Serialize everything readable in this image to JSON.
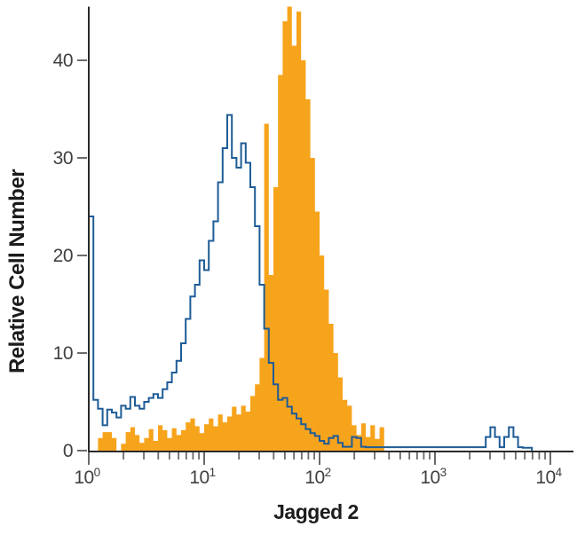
{
  "chart_data": {
    "type": "histogram-overlay-flow-cytometry",
    "title": "",
    "xlabel": "Jagged 2",
    "ylabel": "Relative Cell Number",
    "x_scale": "log10",
    "x_decade_exponents": [
      0,
      1,
      2,
      3,
      4
    ],
    "x_tick_base": "10",
    "x_minor_ticks": [
      2,
      3,
      4,
      5,
      6,
      7,
      8,
      9
    ],
    "y_ticks": [
      0,
      10,
      20,
      30,
      40
    ],
    "ylim": [
      0,
      45.5
    ],
    "grid": "off",
    "legend": "none",
    "bins_per_decade": 25,
    "n_bins": 100,
    "series": [
      {
        "name": "filled-stained-histogram",
        "style": "filled",
        "color": "#F7A41D",
        "values": [
          0,
          0,
          1.3,
          1.9,
          1.9,
          1.3,
          0,
          0.7,
          1.9,
          2.4,
          1.6,
          0.8,
          1.3,
          2.2,
          1.0,
          2.6,
          2.1,
          1.3,
          2.3,
          1.6,
          2.1,
          2.9,
          3.3,
          2.5,
          1.8,
          2.7,
          3.3,
          2.5,
          3.7,
          2.9,
          3.5,
          4.5,
          3.7,
          4.6,
          4.0,
          5.6,
          6.8,
          9.5,
          33.5,
          18.0,
          27.0,
          38.5,
          44.0,
          45.5,
          41.5,
          45.0,
          40.0,
          36.0,
          30.0,
          24.5,
          20.0,
          16.5,
          13.0,
          10.0,
          7.5,
          5.2,
          4.6,
          2.6,
          1.6,
          2.8,
          1.4,
          2.6,
          1.2,
          2.4,
          0,
          0,
          0,
          0,
          0,
          0,
          0,
          0,
          0,
          0,
          0,
          0,
          0,
          0,
          0,
          0,
          0,
          0,
          0,
          0,
          0,
          0,
          0,
          0,
          0,
          0,
          0,
          0,
          0,
          0,
          0,
          0,
          0,
          0,
          0,
          0
        ]
      },
      {
        "name": "open-control-histogram",
        "style": "outline",
        "color": "#1E5C96",
        "values": [
          24,
          5.2,
          4.3,
          2.6,
          4.2,
          3.9,
          3.4,
          4.6,
          4.3,
          5.5,
          4.6,
          4.3,
          5.0,
          5.4,
          5.8,
          5.4,
          6.3,
          7.0,
          8.0,
          9.2,
          11.0,
          13.5,
          15.8,
          17.0,
          19.5,
          18.5,
          21.5,
          23.5,
          27.5,
          31.0,
          34.4,
          30.0,
          29.0,
          31.5,
          29.5,
          27.0,
          23.0,
          17.0,
          12.5,
          9.0,
          6.8,
          5.2,
          5.4,
          4.5,
          3.8,
          3.3,
          2.7,
          2.2,
          1.8,
          1.5,
          1.0,
          0.7,
          1.3,
          1.5,
          0.8,
          0.4,
          0.4,
          1.4,
          1.3,
          0.4,
          0.35,
          0.35,
          0.35,
          0.35,
          0.35,
          0.35,
          0.35,
          0.35,
          0.35,
          0.35,
          0.35,
          0.35,
          0.35,
          0.35,
          0.35,
          0.35,
          0.35,
          0.35,
          0.35,
          0.35,
          0.35,
          0.35,
          0.35,
          0.35,
          0.35,
          0.35,
          1.4,
          2.4,
          1.4,
          0.35,
          1.4,
          2.4,
          1.4,
          0.35,
          0.3,
          0.3,
          0,
          0,
          0,
          0
        ]
      }
    ],
    "colors": {
      "axis": "#2A2A2A",
      "tick": "#6B6B6B",
      "tick_label": "#3F3F3F",
      "title_text": "#1C1C1C",
      "background": "#FFFFFF"
    }
  }
}
